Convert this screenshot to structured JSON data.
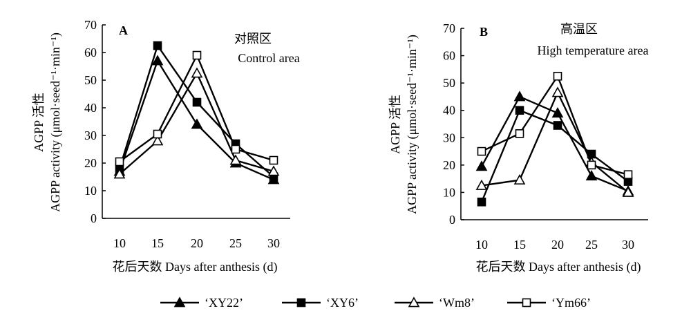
{
  "legend": [
    {
      "label": "‘XY22’",
      "marker": "filled-triangle"
    },
    {
      "label": "‘XY6’",
      "marker": "filled-square"
    },
    {
      "label": "‘Wm8’",
      "marker": "open-triangle"
    },
    {
      "label": "‘Ym66’",
      "marker": "open-square"
    }
  ],
  "chart_data": [
    {
      "type": "line",
      "panel": "A",
      "annotation_cn": "对照区",
      "annotation_en": "Control area",
      "xlabel": "花后天数 Days after anthesis (d)",
      "ylabel_cn": "AGPP 活性",
      "ylabel_en": "AGPP activity (μmol·seed⁻¹·min⁻¹)",
      "x": [
        10,
        15,
        20,
        25,
        30
      ],
      "ylim": [
        0,
        70
      ],
      "yticks": [
        0,
        10,
        20,
        30,
        40,
        50,
        60,
        70
      ],
      "series": [
        {
          "name": "‘XY22’",
          "marker": "filled-triangle",
          "values": [
            17,
            57,
            34,
            20,
            14
          ]
        },
        {
          "name": "‘XY6’",
          "marker": "filled-square",
          "values": [
            18,
            62.5,
            42,
            27,
            15
          ]
        },
        {
          "name": "‘Wm8’",
          "marker": "open-triangle",
          "values": [
            16,
            28,
            52.5,
            21,
            17
          ]
        },
        {
          "name": "‘Ym66’",
          "marker": "open-square",
          "values": [
            20.5,
            30.5,
            59,
            25,
            21
          ]
        }
      ]
    },
    {
      "type": "line",
      "panel": "B",
      "annotation_cn": "高温区",
      "annotation_en": "High temperature area",
      "xlabel": "花后天数 Days after anthesis (d)",
      "ylabel_cn": "AGPP 活性",
      "ylabel_en": "AGPP activity (μmol·seed⁻¹·min⁻¹)",
      "x": [
        10,
        15,
        20,
        25,
        30
      ],
      "ylim": [
        0,
        70
      ],
      "yticks": [
        0,
        10,
        20,
        30,
        40,
        50,
        60,
        70
      ],
      "series": [
        {
          "name": "‘XY22’",
          "marker": "filled-triangle",
          "values": [
            19.5,
            45,
            39,
            16,
            10.5
          ]
        },
        {
          "name": "‘XY6’",
          "marker": "filled-square",
          "values": [
            6.5,
            40,
            34.5,
            24,
            14
          ]
        },
        {
          "name": "‘Wm8’",
          "marker": "open-triangle",
          "values": [
            12.5,
            14.5,
            46.5,
            21,
            10
          ]
        },
        {
          "name": "‘Ym66’",
          "marker": "open-square",
          "values": [
            25,
            31.5,
            52.5,
            20,
            16.5
          ]
        }
      ]
    }
  ]
}
